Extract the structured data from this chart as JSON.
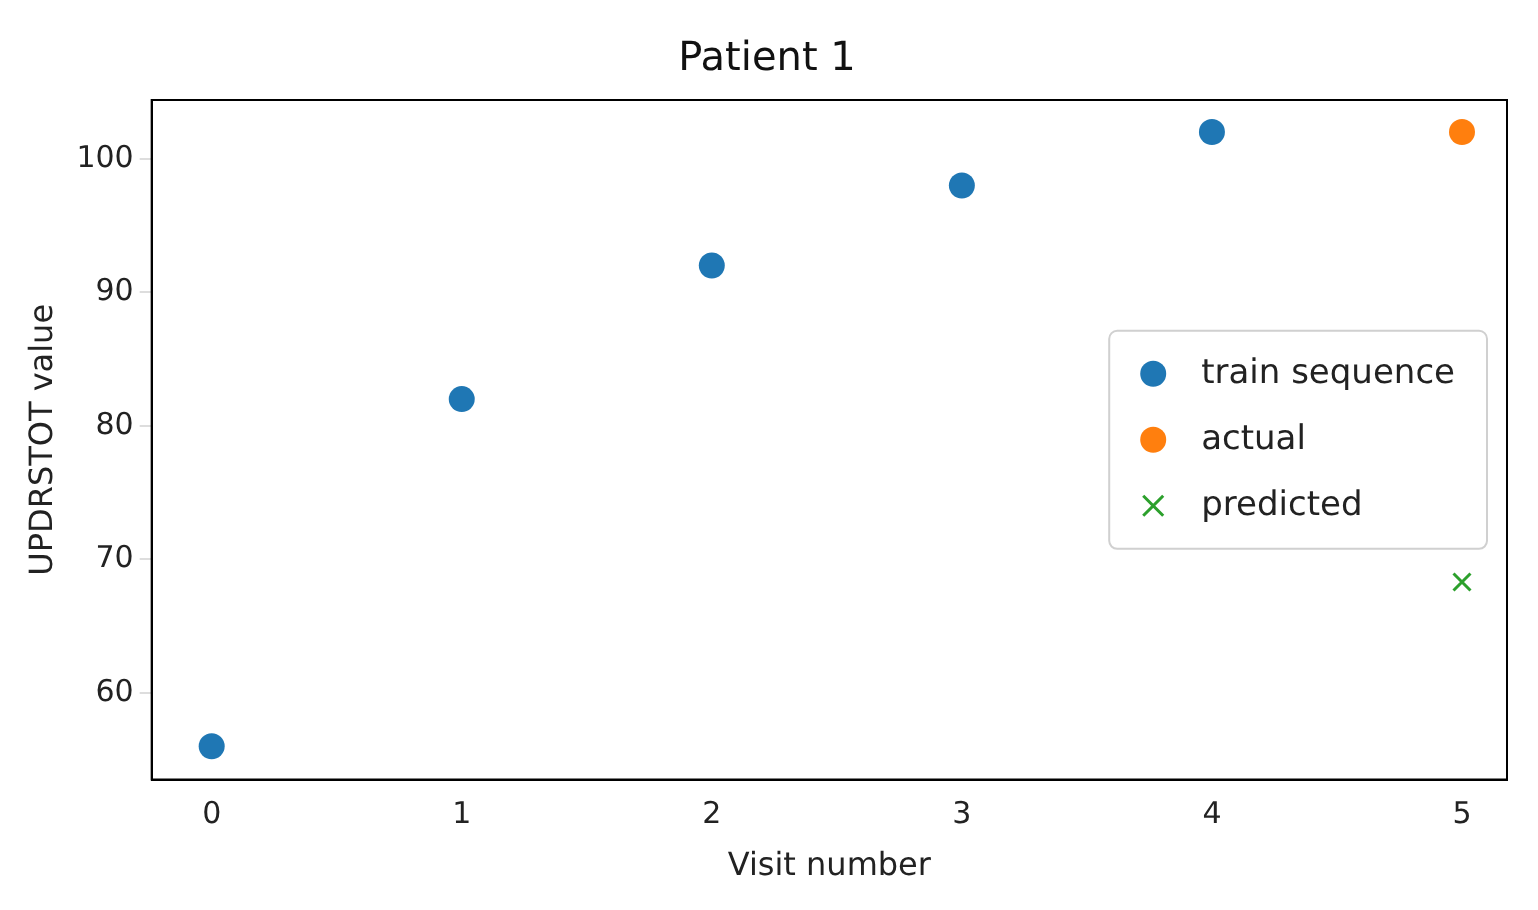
{
  "chart_data": {
    "type": "scatter",
    "title": "Patient 1",
    "xlabel": "Visit number",
    "ylabel": "UPDRSTOT value",
    "series": [
      {
        "name": "train sequence",
        "color": "#1f77b4",
        "marker": "circle",
        "x": [
          0,
          1,
          2,
          3,
          4
        ],
        "values": [
          56,
          82,
          92,
          98,
          102
        ]
      },
      {
        "name": "actual",
        "color": "#ff7f0e",
        "marker": "circle",
        "x": [
          5
        ],
        "values": [
          102
        ]
      },
      {
        "name": "predicted",
        "color": "#2ca02c",
        "marker": "cross",
        "x": [
          5
        ],
        "values": [
          68.3
        ]
      }
    ],
    "xlim": [
      -0.24,
      5.18
    ],
    "xticks": [
      0,
      1,
      2,
      3,
      4,
      5
    ],
    "ylim": [
      53.5,
      104.4
    ],
    "yticks": [
      60,
      70,
      80,
      90,
      100
    ],
    "grid": false,
    "legend": "center right"
  }
}
